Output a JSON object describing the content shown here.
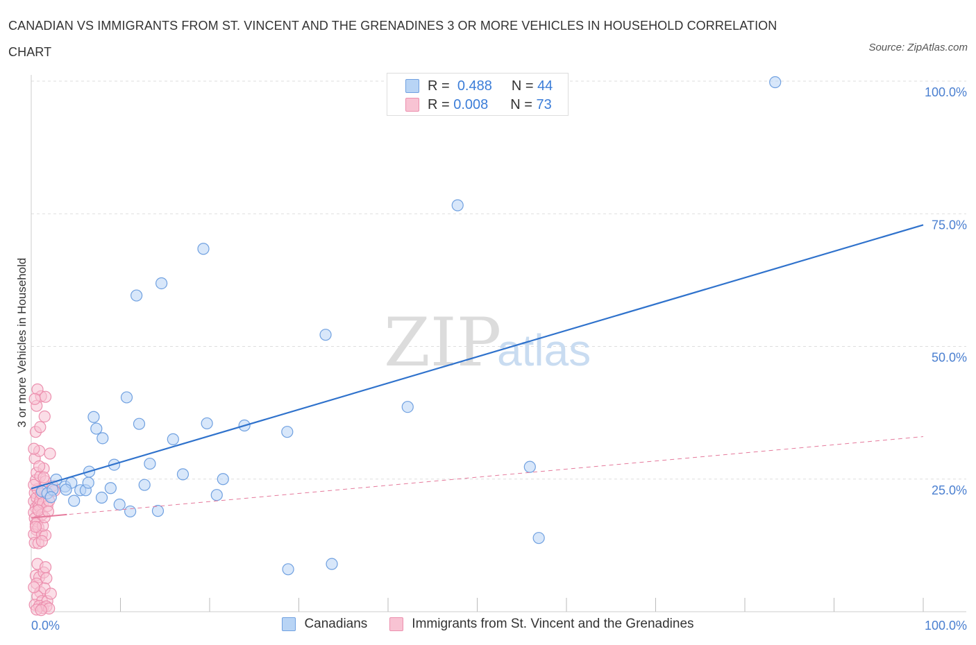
{
  "title": "CANADIAN VS IMMIGRANTS FROM ST. VINCENT AND THE GRENADINES 3 OR MORE VEHICLES IN HOUSEHOLD CORRELATION CHART",
  "source": "Source: ZipAtlas.com",
  "watermark": {
    "zip": "ZIP",
    "atlas": "atlas"
  },
  "legend": {
    "r_label": "R =",
    "n_label": "N =",
    "rows": [
      {
        "r": "0.488",
        "n": "44",
        "fill": "#b8d4f5",
        "stroke": "#6fa0e0"
      },
      {
        "r": "0.008",
        "n": "73",
        "fill": "#f8c3d3",
        "stroke": "#ec8fae"
      }
    ]
  },
  "bottom_legend": [
    "Canadians",
    "Immigrants from St. Vincent and the Grenadines"
  ],
  "chart_data": {
    "type": "scatter",
    "title": "CANADIAN VS IMMIGRANTS FROM ST. VINCENT AND THE GRENADINES 3 OR MORE VEHICLES IN HOUSEHOLD CORRELATION CHART",
    "xlabel": "",
    "ylabel": "3 or more Vehicles in Household",
    "xlim": [
      0,
      100
    ],
    "ylim": [
      0,
      100
    ],
    "x_tick_labels": [
      "0.0%",
      "100.0%"
    ],
    "y_ticks": [
      25,
      50,
      75,
      100
    ],
    "y_tick_labels": [
      "25.0%",
      "50.0%",
      "75.0%",
      "100.0%"
    ],
    "grid": true,
    "series": [
      {
        "name": "Canadians",
        "color": "#6fa0e0",
        "fill": "#b8d4f5",
        "trend": {
          "x0": 0,
          "y0": 23.2,
          "x1": 100,
          "y1": 72.9,
          "style": "solid",
          "color": "#2f72cc"
        },
        "points": [
          [
            1.2,
            22.7
          ],
          [
            1.8,
            22.3
          ],
          [
            2.4,
            23.0
          ],
          [
            2.2,
            21.6
          ],
          [
            2.8,
            24.9
          ],
          [
            3.8,
            23.6
          ],
          [
            4.5,
            24.3
          ],
          [
            5.5,
            22.9
          ],
          [
            4.8,
            20.9
          ],
          [
            6.1,
            22.9
          ],
          [
            6.5,
            26.4
          ],
          [
            6.4,
            24.3
          ],
          [
            7.0,
            36.7
          ],
          [
            7.3,
            34.5
          ],
          [
            8.0,
            32.7
          ],
          [
            7.9,
            21.5
          ],
          [
            8.9,
            23.3
          ],
          [
            9.3,
            27.7
          ],
          [
            9.9,
            20.2
          ],
          [
            10.7,
            40.4
          ],
          [
            11.1,
            18.9
          ],
          [
            11.8,
            59.6
          ],
          [
            12.1,
            35.4
          ],
          [
            12.7,
            23.9
          ],
          [
            13.3,
            27.9
          ],
          [
            14.2,
            19.0
          ],
          [
            14.6,
            61.9
          ],
          [
            15.9,
            32.5
          ],
          [
            17.0,
            25.9
          ],
          [
            19.3,
            68.4
          ],
          [
            19.7,
            35.5
          ],
          [
            20.8,
            22.0
          ],
          [
            21.5,
            25.0
          ],
          [
            23.9,
            35.1
          ],
          [
            28.7,
            33.9
          ],
          [
            28.8,
            8.0
          ],
          [
            33.0,
            52.2
          ],
          [
            33.7,
            9.0
          ],
          [
            42.2,
            38.6
          ],
          [
            47.8,
            76.6
          ],
          [
            55.9,
            27.3
          ],
          [
            56.9,
            13.9
          ],
          [
            83.4,
            99.8
          ],
          [
            3.9,
            23.0
          ]
        ]
      },
      {
        "name": "Immigrants from St. Vincent and the Grenadines",
        "color": "#ec8fae",
        "fill": "#f8c3d3",
        "trend": {
          "x0": 0,
          "y0": 17.7,
          "x1": 100,
          "y1": 33.0,
          "style": "dashed",
          "color": "#e57a9c"
        },
        "points": [
          [
            0.3,
            20.8
          ],
          [
            0.4,
            22.4
          ],
          [
            0.5,
            19.6
          ],
          [
            0.6,
            21.5
          ],
          [
            0.3,
            18.7
          ],
          [
            0.7,
            23.1
          ],
          [
            0.4,
            17.6
          ],
          [
            0.8,
            20.2
          ],
          [
            0.5,
            16.5
          ],
          [
            0.9,
            19.8
          ],
          [
            0.6,
            15.4
          ],
          [
            1.0,
            21.0
          ],
          [
            0.3,
            14.6
          ],
          [
            0.7,
            17.0
          ],
          [
            1.1,
            22.3
          ],
          [
            0.4,
            13.0
          ],
          [
            0.8,
            15.9
          ],
          [
            1.2,
            18.3
          ],
          [
            0.5,
            24.8
          ],
          [
            1.3,
            20.5
          ],
          [
            0.6,
            26.2
          ],
          [
            1.0,
            25.5
          ],
          [
            0.4,
            28.9
          ],
          [
            0.9,
            30.3
          ],
          [
            1.4,
            27.0
          ],
          [
            0.3,
            30.7
          ],
          [
            1.6,
            24.6
          ],
          [
            2.1,
            29.8
          ],
          [
            0.5,
            33.9
          ],
          [
            1.0,
            34.8
          ],
          [
            1.5,
            36.8
          ],
          [
            0.6,
            38.8
          ],
          [
            1.1,
            40.6
          ],
          [
            1.6,
            40.5
          ],
          [
            0.7,
            41.9
          ],
          [
            0.4,
            40.1
          ],
          [
            0.8,
            12.9
          ],
          [
            1.2,
            14.6
          ],
          [
            1.6,
            14.4
          ],
          [
            1.3,
            16.2
          ],
          [
            1.8,
            19.9
          ],
          [
            2.0,
            20.9
          ],
          [
            1.5,
            17.8
          ],
          [
            0.5,
            6.8
          ],
          [
            0.9,
            6.5
          ],
          [
            1.4,
            7.4
          ],
          [
            1.7,
            6.3
          ],
          [
            0.6,
            5.3
          ],
          [
            1.0,
            3.7
          ],
          [
            1.5,
            4.4
          ],
          [
            0.7,
            2.9
          ],
          [
            1.2,
            2.0
          ],
          [
            1.8,
            2.0
          ],
          [
            0.4,
            1.3
          ],
          [
            0.9,
            1.1
          ],
          [
            1.3,
            0.7
          ],
          [
            1.7,
            1.0
          ],
          [
            2.0,
            0.6
          ],
          [
            0.6,
            0.4
          ],
          [
            1.1,
            0.3
          ],
          [
            2.4,
            23.7
          ],
          [
            2.6,
            22.8
          ],
          [
            0.8,
            19.1
          ],
          [
            1.9,
            18.9
          ],
          [
            0.3,
            23.9
          ],
          [
            1.4,
            25.3
          ],
          [
            0.9,
            27.4
          ],
          [
            0.5,
            16.0
          ],
          [
            1.2,
            13.3
          ],
          [
            0.7,
            9.0
          ],
          [
            1.6,
            8.4
          ],
          [
            0.3,
            4.6
          ],
          [
            2.2,
            3.4
          ]
        ]
      }
    ]
  }
}
